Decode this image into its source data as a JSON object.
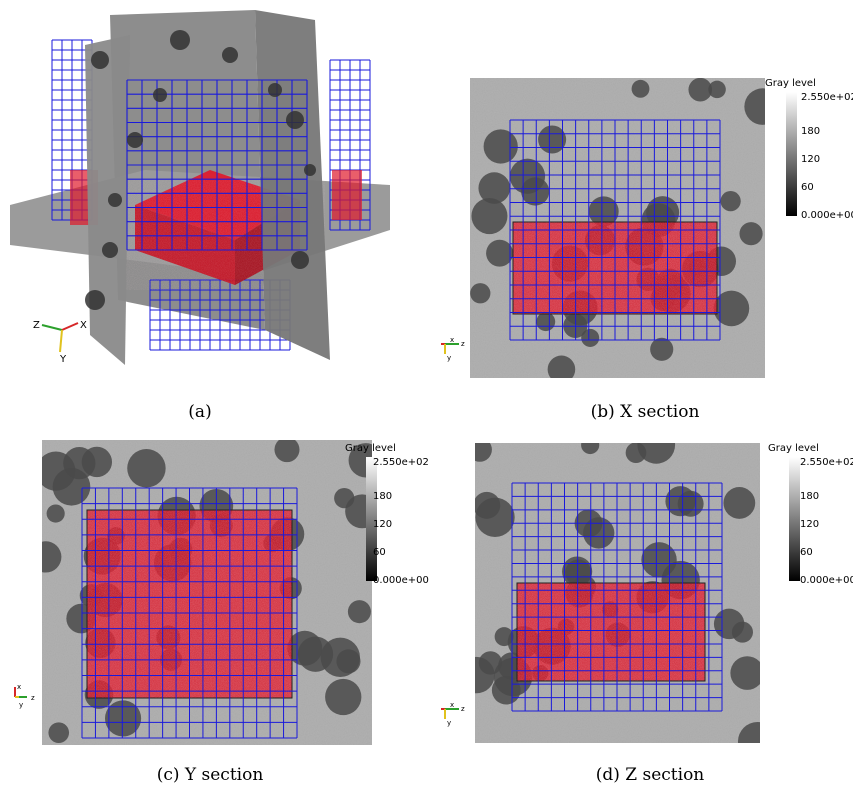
{
  "captions": {
    "a": "(a)",
    "b": "(b) X section",
    "c": "(c) Y section",
    "d": "(d) Z section"
  },
  "colorbar": {
    "title": "Gray level",
    "ticks": [
      "2.550e+02",
      "180",
      "120",
      "60",
      "0.000e+00"
    ]
  },
  "axes_3d": {
    "x": "X",
    "y": "Y",
    "z": "Z"
  },
  "axes_b": {
    "a": "x",
    "b": "z",
    "c": "y"
  },
  "axes_c": {
    "a": "x",
    "b": "y",
    "c": "z"
  },
  "axes_d": {
    "a": "x",
    "b": "z",
    "c": "y"
  },
  "colors": {
    "mesh": "#1a1adb",
    "red": "#e0192b",
    "gray": "#a9a9a9"
  }
}
